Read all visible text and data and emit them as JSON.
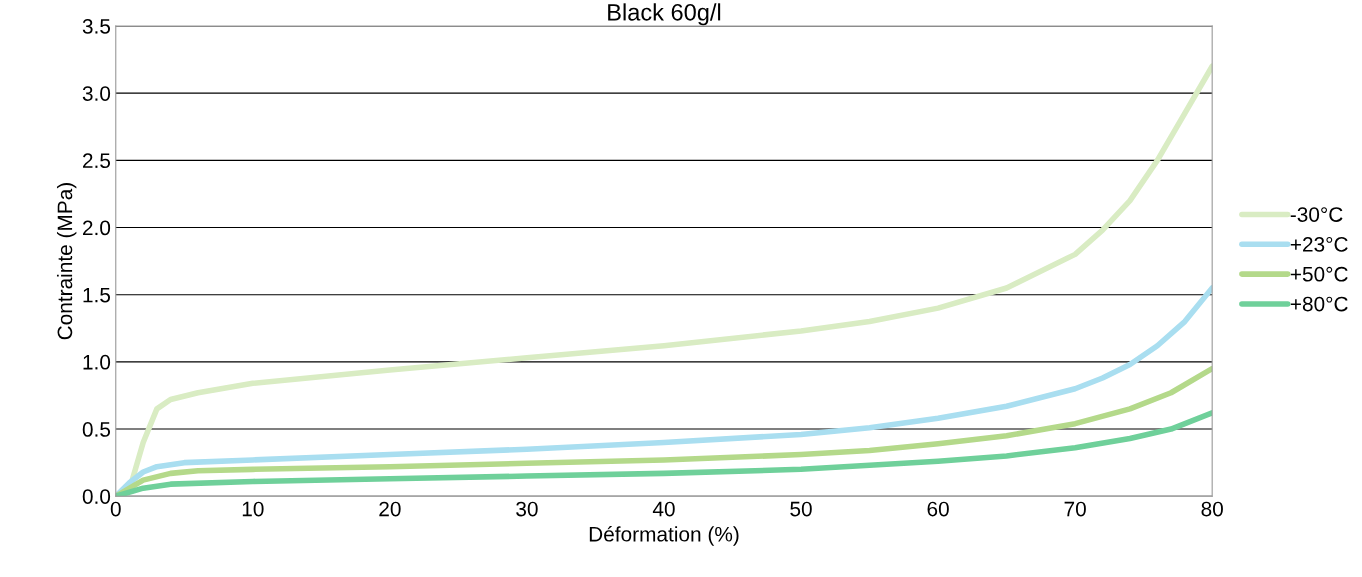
{
  "chart_data": {
    "type": "line",
    "title": "Black 60g/l",
    "xlabel": "Déformation (%)",
    "ylabel": "Contrainte (MPa)",
    "xlim": [
      0,
      80
    ],
    "xticks": [
      0,
      10,
      20,
      30,
      40,
      50,
      60,
      70,
      80
    ],
    "ylim": [
      0,
      3.5
    ],
    "yticks": [
      {
        "value": 0,
        "label": "0.0"
      },
      {
        "value": 0.5,
        "label": "0.5"
      },
      {
        "value": 1,
        "label": "1.0"
      },
      {
        "value": 1.5,
        "label": "1.5"
      },
      {
        "value": 2,
        "label": "2.0"
      },
      {
        "value": 2.5,
        "label": "2.5"
      },
      {
        "value": 3,
        "label": "3.0"
      },
      {
        "value": 3.5,
        "label": "3.5"
      }
    ],
    "grid": "y",
    "legend": "right",
    "marker": "none",
    "line_style": "solid",
    "series": [
      {
        "name": "-30°C",
        "color": "#d9ecc3",
        "x": [
          0,
          1,
          2,
          3,
          4,
          6,
          10,
          20,
          30,
          40,
          50,
          55,
          60,
          65,
          70,
          72,
          74,
          76,
          78,
          80
        ],
        "values": [
          0,
          0.05,
          0.4,
          0.65,
          0.72,
          0.77,
          0.84,
          0.94,
          1.03,
          1.12,
          1.23,
          1.3,
          1.4,
          1.55,
          1.8,
          1.98,
          2.2,
          2.5,
          2.85,
          3.2
        ]
      },
      {
        "name": "+23°C",
        "color": "#a9def0",
        "x": [
          0,
          1,
          2,
          3,
          5,
          10,
          20,
          30,
          40,
          50,
          55,
          60,
          65,
          70,
          72,
          74,
          76,
          78,
          80
        ],
        "values": [
          0,
          0.1,
          0.18,
          0.22,
          0.25,
          0.27,
          0.31,
          0.35,
          0.4,
          0.46,
          0.51,
          0.58,
          0.67,
          0.8,
          0.88,
          0.98,
          1.12,
          1.3,
          1.55
        ]
      },
      {
        "name": "+50°C",
        "color": "#b4d98a",
        "x": [
          0,
          2,
          4,
          6,
          10,
          20,
          30,
          40,
          50,
          55,
          60,
          65,
          70,
          74,
          77,
          80
        ],
        "values": [
          0,
          0.12,
          0.17,
          0.19,
          0.2,
          0.22,
          0.245,
          0.27,
          0.31,
          0.34,
          0.39,
          0.45,
          0.54,
          0.65,
          0.77,
          0.95
        ]
      },
      {
        "name": "+80°C",
        "color": "#6fd09a",
        "x": [
          0,
          2,
          4,
          10,
          20,
          30,
          40,
          50,
          60,
          65,
          70,
          74,
          77,
          80
        ],
        "values": [
          0,
          0.06,
          0.09,
          0.11,
          0.13,
          0.15,
          0.17,
          0.2,
          0.26,
          0.3,
          0.36,
          0.43,
          0.5,
          0.62
        ]
      }
    ]
  }
}
